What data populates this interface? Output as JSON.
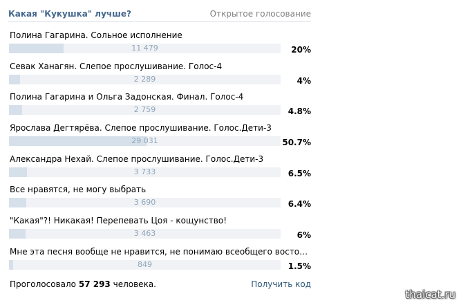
{
  "poll": {
    "title": "Какая \"Кукушка\" лучше?",
    "type": "Открытое голосование",
    "options": [
      {
        "text": "Полина Гагарина. Сольное исполнение",
        "count": "11 479",
        "percent": "20%",
        "share": 0.2
      },
      {
        "text": "Севак Ханагян. Слепое прослушивание. Голос-4",
        "count": "2 289",
        "percent": "4%",
        "share": 0.04
      },
      {
        "text": "Полина Гагарина и Ольга Задонская. Финал. Голос-4",
        "count": "2 759",
        "percent": "4.8%",
        "share": 0.048
      },
      {
        "text": "Ярослава Дегтярёва. Слепое прослушивание. Голос.Дети-3",
        "count": "29 031",
        "percent": "50.7%",
        "share": 0.507
      },
      {
        "text": "Александра Нехай. Слепое прослушивание. Голос.Дети-3",
        "count": "3 733",
        "percent": "6.5%",
        "share": 0.065
      },
      {
        "text": "Все нравятся, не могу выбрать",
        "count": "3 690",
        "percent": "6.4%",
        "share": 0.064
      },
      {
        "text": "\"Какая\"?! Никакая! Перепевать Цоя - кощунство!",
        "count": "3 463",
        "percent": "6%",
        "share": 0.06
      },
      {
        "text": "Мне эта песня вообще не нравится, не понимаю всеобщего восторга...",
        "count": "849",
        "percent": "1.5%",
        "share": 0.015
      }
    ],
    "footer": {
      "voted_prefix": "Проголосовало",
      "voted_count": "57 293",
      "voted_suffix": "человека.",
      "get_code": "Получить код"
    }
  },
  "watermark": "thaicat.ru",
  "colors": {
    "title": "#45688e",
    "link": "#2b587a",
    "bar_fill": "#d6e0ea",
    "bar_track": "#f0f2f5",
    "count_text": "#8fa5bc"
  }
}
